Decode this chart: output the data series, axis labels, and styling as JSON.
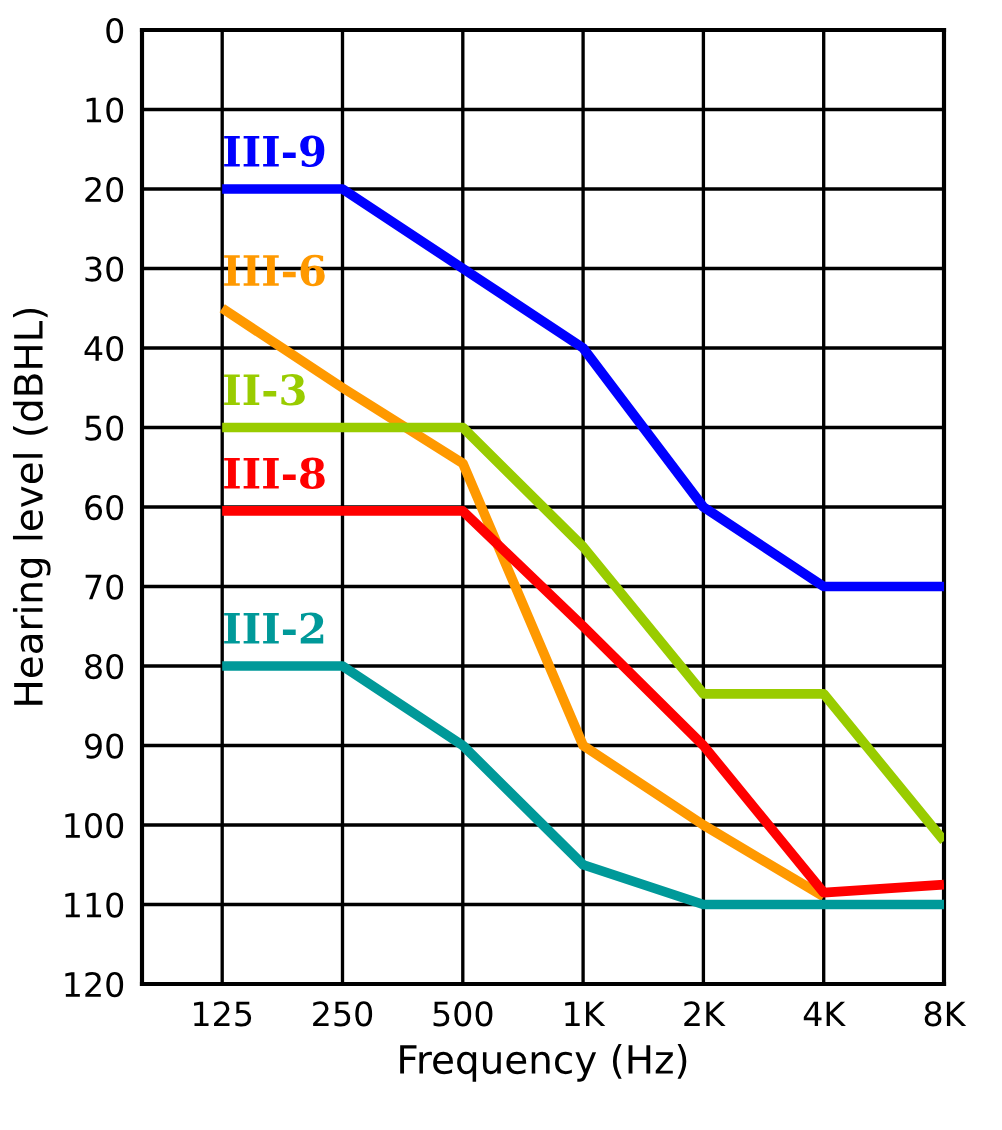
{
  "chart_data": {
    "type": "line",
    "xlabel": "Frequency (Hz)",
    "ylabel": "Hearing level (dBHL)",
    "categories": [
      "125",
      "250",
      "500",
      "1K",
      "2K",
      "4K",
      "8K"
    ],
    "ylim": [
      120,
      0
    ],
    "yticks": [
      0,
      10,
      20,
      30,
      40,
      50,
      60,
      70,
      80,
      90,
      100,
      110,
      120
    ],
    "grid": true,
    "legend": false,
    "marker": "none",
    "line_style": "solid",
    "series": [
      {
        "name": "III-9",
        "color": "#0000ff",
        "values": [
          20,
          20,
          30,
          40,
          60,
          70,
          70
        ]
      },
      {
        "name": "III-6",
        "color": "#ff9900",
        "values": [
          35,
          45,
          54.5,
          90,
          100,
          109,
          null
        ]
      },
      {
        "name": "II-3",
        "color": "#99cc00",
        "values": [
          50,
          50,
          50,
          65,
          83.5,
          83.5,
          102
        ]
      },
      {
        "name": "III-8",
        "color": "#ff0000",
        "values": [
          60.5,
          60.5,
          60.5,
          75,
          90,
          108.5,
          107.5
        ]
      },
      {
        "name": "III-2",
        "color": "#009999",
        "values": [
          80,
          80,
          90,
          105,
          110,
          110,
          110
        ]
      }
    ]
  }
}
